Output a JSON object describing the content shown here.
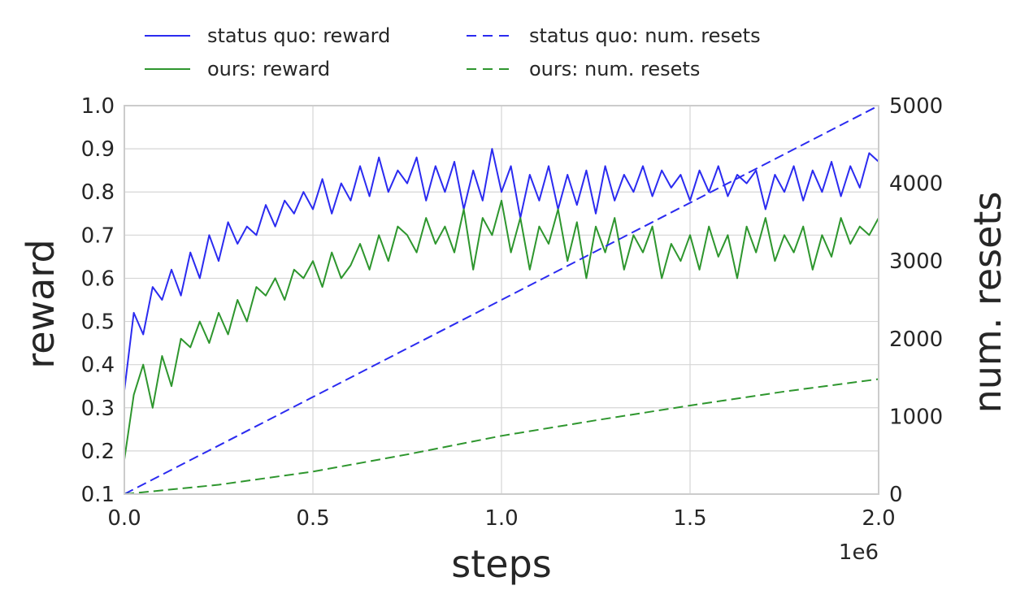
{
  "chart_data": {
    "type": "line",
    "xlabel": "steps",
    "ylabel": "reward",
    "y2label": "num. resets",
    "x_offset_label": "1e6",
    "xlim": [
      0,
      2000000
    ],
    "ylim": [
      0.1,
      1.0
    ],
    "y2lim": [
      0,
      5000
    ],
    "x_ticks": [
      0,
      500000,
      1000000,
      1500000,
      2000000
    ],
    "x_tick_labels": [
      "0.0",
      "0.5",
      "1.0",
      "1.5",
      "2.0"
    ],
    "y_ticks": [
      0.1,
      0.2,
      0.3,
      0.4,
      0.5,
      0.6,
      0.7,
      0.8,
      0.9,
      1.0
    ],
    "y_tick_labels": [
      "0.1",
      "0.2",
      "0.3",
      "0.4",
      "0.5",
      "0.6",
      "0.7",
      "0.8",
      "0.9",
      "1.0"
    ],
    "y2_ticks": [
      0,
      1000,
      2000,
      3000,
      4000,
      5000
    ],
    "y2_tick_labels": [
      "0",
      "1000",
      "2000",
      "3000",
      "4000",
      "5000"
    ],
    "grid": true,
    "legend_position": "top",
    "series": [
      {
        "name": "status quo: reward",
        "axis": "left",
        "style": "solid",
        "color": "#2b2bf0",
        "x": [
          0,
          25000,
          50000,
          75000,
          100000,
          125000,
          150000,
          175000,
          200000,
          225000,
          250000,
          275000,
          300000,
          325000,
          350000,
          375000,
          400000,
          425000,
          450000,
          475000,
          500000,
          525000,
          550000,
          575000,
          600000,
          625000,
          650000,
          675000,
          700000,
          725000,
          750000,
          775000,
          800000,
          825000,
          850000,
          875000,
          900000,
          925000,
          950000,
          975000,
          1000000,
          1025000,
          1050000,
          1075000,
          1100000,
          1125000,
          1150000,
          1175000,
          1200000,
          1225000,
          1250000,
          1275000,
          1300000,
          1325000,
          1350000,
          1375000,
          1400000,
          1425000,
          1450000,
          1475000,
          1500000,
          1525000,
          1550000,
          1575000,
          1600000,
          1625000,
          1650000,
          1675000,
          1700000,
          1725000,
          1750000,
          1775000,
          1800000,
          1825000,
          1850000,
          1875000,
          1900000,
          1925000,
          1950000,
          1975000,
          2000000
        ],
        "values": [
          0.34,
          0.52,
          0.47,
          0.58,
          0.55,
          0.62,
          0.56,
          0.66,
          0.6,
          0.7,
          0.64,
          0.73,
          0.68,
          0.72,
          0.7,
          0.77,
          0.72,
          0.78,
          0.75,
          0.8,
          0.76,
          0.83,
          0.75,
          0.82,
          0.78,
          0.86,
          0.79,
          0.88,
          0.8,
          0.85,
          0.82,
          0.88,
          0.78,
          0.86,
          0.8,
          0.87,
          0.76,
          0.85,
          0.78,
          0.9,
          0.8,
          0.86,
          0.74,
          0.84,
          0.78,
          0.86,
          0.76,
          0.84,
          0.77,
          0.85,
          0.75,
          0.86,
          0.78,
          0.84,
          0.8,
          0.86,
          0.79,
          0.85,
          0.81,
          0.84,
          0.78,
          0.85,
          0.8,
          0.86,
          0.79,
          0.84,
          0.82,
          0.85,
          0.76,
          0.84,
          0.8,
          0.86,
          0.78,
          0.85,
          0.8,
          0.87,
          0.79,
          0.86,
          0.81,
          0.89,
          0.87
        ]
      },
      {
        "name": "ours: reward",
        "axis": "left",
        "style": "solid",
        "color": "#2e962e",
        "x": [
          0,
          25000,
          50000,
          75000,
          100000,
          125000,
          150000,
          175000,
          200000,
          225000,
          250000,
          275000,
          300000,
          325000,
          350000,
          375000,
          400000,
          425000,
          450000,
          475000,
          500000,
          525000,
          550000,
          575000,
          600000,
          625000,
          650000,
          675000,
          700000,
          725000,
          750000,
          775000,
          800000,
          825000,
          850000,
          875000,
          900000,
          925000,
          950000,
          975000,
          1000000,
          1025000,
          1050000,
          1075000,
          1100000,
          1125000,
          1150000,
          1175000,
          1200000,
          1225000,
          1250000,
          1275000,
          1300000,
          1325000,
          1350000,
          1375000,
          1400000,
          1425000,
          1450000,
          1475000,
          1500000,
          1525000,
          1550000,
          1575000,
          1600000,
          1625000,
          1650000,
          1675000,
          1700000,
          1725000,
          1750000,
          1775000,
          1800000,
          1825000,
          1850000,
          1875000,
          1900000,
          1925000,
          1950000,
          1975000,
          2000000
        ],
        "values": [
          0.18,
          0.33,
          0.4,
          0.3,
          0.42,
          0.35,
          0.46,
          0.44,
          0.5,
          0.45,
          0.52,
          0.47,
          0.55,
          0.5,
          0.58,
          0.56,
          0.6,
          0.55,
          0.62,
          0.6,
          0.64,
          0.58,
          0.66,
          0.6,
          0.63,
          0.68,
          0.62,
          0.7,
          0.64,
          0.72,
          0.7,
          0.66,
          0.74,
          0.68,
          0.72,
          0.66,
          0.76,
          0.62,
          0.74,
          0.7,
          0.78,
          0.66,
          0.74,
          0.62,
          0.72,
          0.68,
          0.76,
          0.64,
          0.73,
          0.6,
          0.72,
          0.66,
          0.74,
          0.62,
          0.7,
          0.66,
          0.72,
          0.6,
          0.68,
          0.64,
          0.7,
          0.62,
          0.72,
          0.65,
          0.7,
          0.6,
          0.72,
          0.66,
          0.74,
          0.64,
          0.7,
          0.66,
          0.72,
          0.62,
          0.7,
          0.65,
          0.74,
          0.68,
          0.72,
          0.7,
          0.74
        ]
      },
      {
        "name": "status quo: num. resets",
        "axis": "right",
        "style": "dashed",
        "color": "#2b2bf0",
        "x": [
          0,
          2000000
        ],
        "values": [
          0,
          5000
        ]
      },
      {
        "name": "ours: num. resets",
        "axis": "right",
        "style": "dashed",
        "color": "#2e962e",
        "x": [
          0,
          250000,
          500000,
          750000,
          1000000,
          1250000,
          1500000,
          1750000,
          2000000
        ],
        "values": [
          0,
          120,
          290,
          510,
          750,
          950,
          1140,
          1320,
          1480
        ]
      }
    ]
  }
}
